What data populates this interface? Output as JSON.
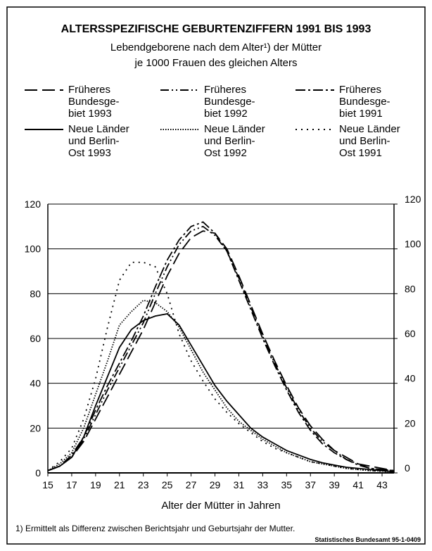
{
  "chart_data": {
    "type": "line",
    "title": "ALTERSSPEZIFISCHE GEBURTENZIFFERN 1991 BIS 1993",
    "subtitle": [
      "Lebendgeborene nach dem Alter¹) der Mütter",
      "je 1000 Frauen des gleichen Alters"
    ],
    "x_label": "Alter der Mütter in Jahren",
    "footnote": "1) Ermittelt als Differenz zwischen Berichtsjahr und Geburtsjahr der Mutter.",
    "source": "Statistisches Bundesamt 95-1-0409",
    "x": [
      15,
      16,
      17,
      18,
      19,
      20,
      21,
      22,
      23,
      24,
      25,
      26,
      27,
      28,
      29,
      30,
      31,
      32,
      33,
      34,
      35,
      36,
      37,
      38,
      39,
      40,
      41,
      42,
      43,
      44
    ],
    "xlim": [
      15,
      44
    ],
    "xticks": [
      15,
      17,
      19,
      21,
      23,
      25,
      27,
      29,
      31,
      33,
      35,
      37,
      39,
      41,
      43
    ],
    "ylim": [
      0,
      120
    ],
    "yticks": [
      0,
      20,
      40,
      60,
      80,
      100,
      120
    ],
    "y2lim": [
      0,
      120
    ],
    "y2ticks": [
      0,
      20,
      40,
      60,
      80,
      100,
      120
    ],
    "grid": true,
    "series": [
      {
        "name": "Früheres\nBundesge-\nbiet 1993",
        "color": "#000000",
        "dash": "18 7",
        "values": [
          1,
          3,
          7,
          14,
          24,
          34,
          44,
          54,
          64,
          76,
          88,
          98,
          105,
          108,
          107,
          100,
          88,
          75,
          62,
          50,
          39,
          29,
          21,
          15,
          10,
          7,
          4,
          3,
          2,
          1
        ]
      },
      {
        "name": "Früheres\nBundesge-\nbiet 1992",
        "color": "#000000",
        "dash": "12 4 2 4 2 4",
        "values": [
          1,
          3,
          7,
          15,
          26,
          37,
          47,
          57,
          67,
          80,
          92,
          102,
          108,
          110,
          106,
          99,
          87,
          74,
          61,
          49,
          38,
          28,
          20,
          14,
          10,
          6,
          4,
          2,
          1.5,
          1
        ]
      },
      {
        "name": "Früheres\nBundesge-\nbiet 1991",
        "color": "#000000",
        "dash": "14 4 3 4",
        "values": [
          1,
          3,
          8,
          16,
          28,
          39,
          49,
          59,
          70,
          83,
          95,
          104,
          110,
          112,
          107,
          99,
          86,
          73,
          60,
          48,
          37,
          27,
          19,
          13,
          9,
          6,
          3.5,
          2,
          1.5,
          1
        ]
      },
      {
        "name": "Neue Länder\nund Berlin-\nOst 1993",
        "color": "#000000",
        "dash": "none",
        "values": [
          1,
          3,
          7,
          16,
          30,
          43,
          56,
          64,
          68,
          70,
          71,
          66,
          57,
          48,
          39,
          32,
          26,
          20,
          16,
          13,
          10,
          8,
          6,
          4.5,
          3.5,
          2.5,
          2,
          1.5,
          1,
          0.5
        ]
      },
      {
        "name": "Neue Länder\nund Berlin-\nOst 1992",
        "color": "#000000",
        "dash": "1.5 2",
        "values": [
          1,
          4,
          9,
          20,
          35,
          50,
          66,
          72,
          77,
          76,
          72,
          65,
          55,
          45,
          37,
          29,
          23,
          19,
          15,
          12,
          9,
          7,
          5,
          4,
          3,
          2,
          1.5,
          1,
          0.8,
          0.5
        ]
      },
      {
        "name": "Neue Länder\nund Berlin-\nOst 1991",
        "color": "#000000",
        "dash": "2 6",
        "values": [
          1,
          5,
          11,
          24,
          42,
          65,
          86,
          94,
          94,
          92,
          80,
          62,
          50,
          41,
          33,
          27,
          22,
          18,
          14,
          11,
          9,
          7,
          5,
          4,
          3,
          2,
          1.5,
          1,
          0.7,
          0.5
        ]
      }
    ]
  }
}
